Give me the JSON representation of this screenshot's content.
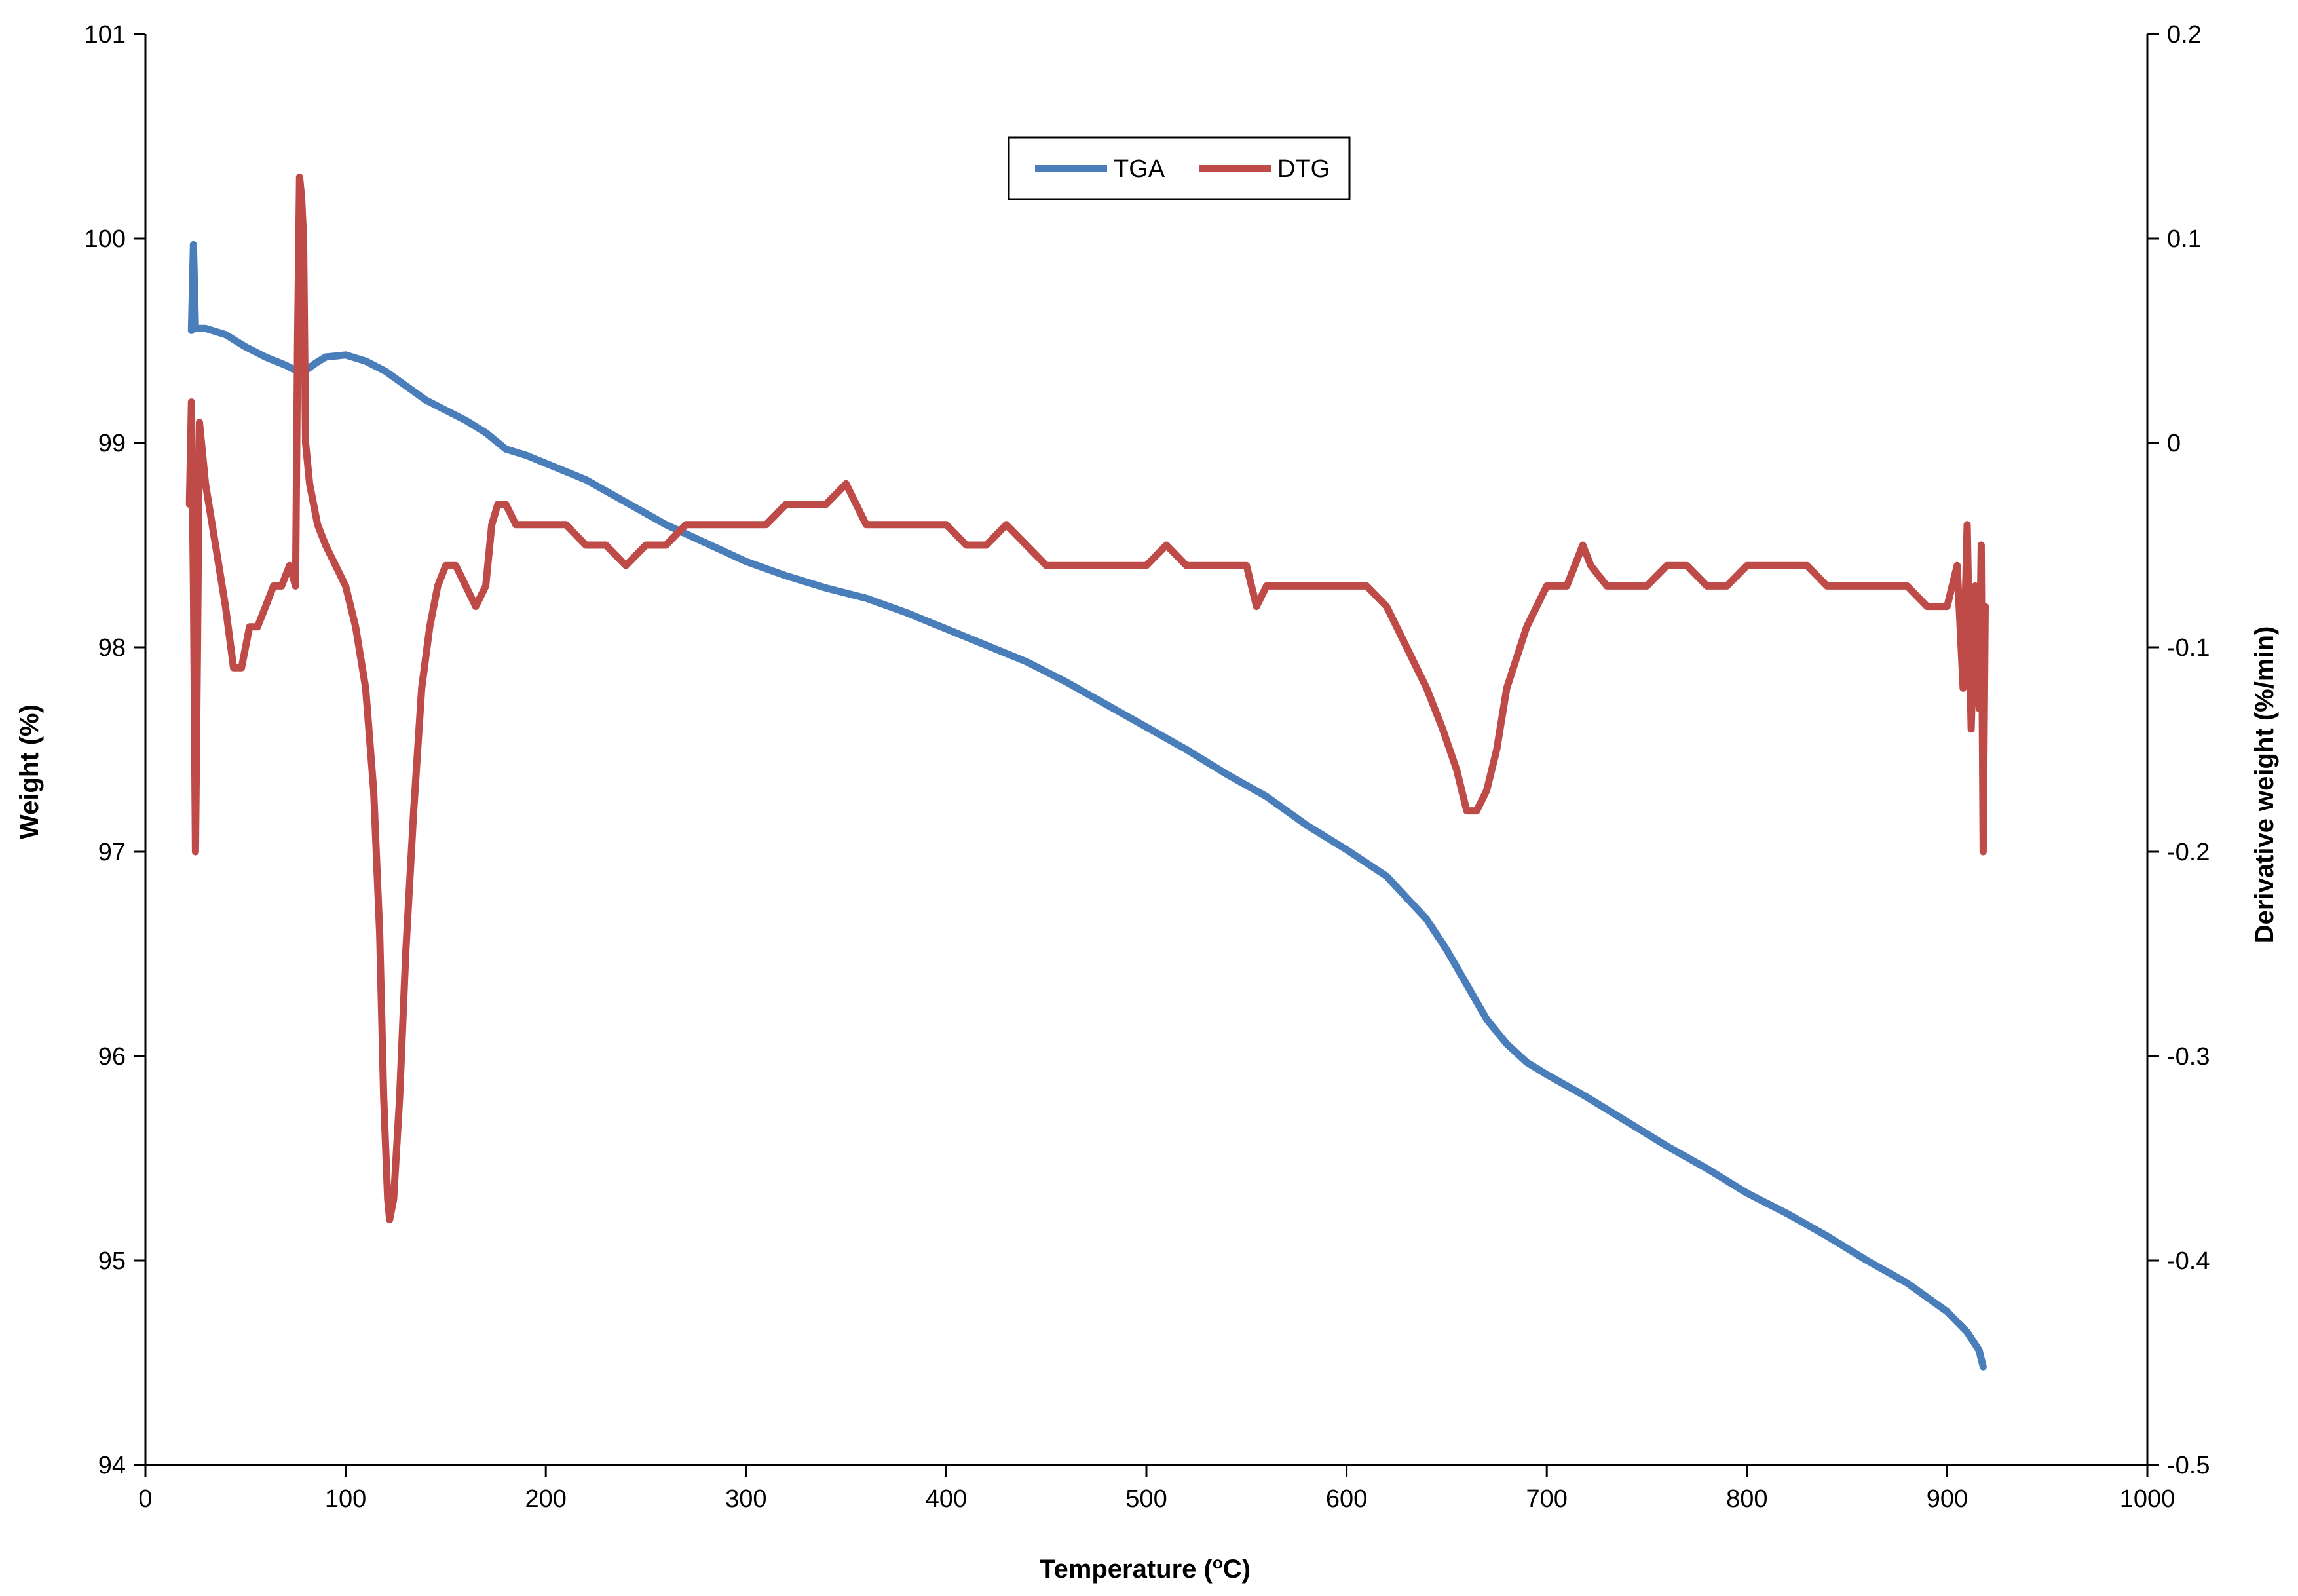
{
  "chart_data": {
    "type": "line",
    "title": "",
    "xlabel": "Temperature (",
    "xlabel_sup": "o",
    "xlabel_tail": "C)",
    "ylabel": "Weight (%)",
    "y2label": "Derivative weight (%/min)",
    "xlim": [
      0,
      1000
    ],
    "ylim": [
      94,
      101
    ],
    "y2lim": [
      -0.5,
      0.2
    ],
    "x_ticks": [
      "0",
      "100",
      "200",
      "300",
      "400",
      "500",
      "600",
      "700",
      "800",
      "900",
      "1000"
    ],
    "y_ticks": [
      "94",
      "95",
      "96",
      "97",
      "98",
      "99",
      "100",
      "101"
    ],
    "y2_ticks": [
      "-0.5",
      "-0.4",
      "-0.3",
      "-0.2",
      "-0.1",
      "0",
      "0.1",
      "0.2"
    ],
    "grid": false,
    "legend_position": "top-center",
    "series": [
      {
        "name": "TGA",
        "axis": "left",
        "color": "#4a7ebb",
        "points": [
          [
            23,
            99.55
          ],
          [
            24,
            99.97
          ],
          [
            25,
            99.56
          ],
          [
            30,
            99.56
          ],
          [
            40,
            99.53
          ],
          [
            50,
            99.47
          ],
          [
            60,
            99.42
          ],
          [
            70,
            99.38
          ],
          [
            78,
            99.34
          ],
          [
            85,
            99.39
          ],
          [
            90,
            99.42
          ],
          [
            100,
            99.43
          ],
          [
            110,
            99.4
          ],
          [
            120,
            99.35
          ],
          [
            130,
            99.28
          ],
          [
            140,
            99.21
          ],
          [
            150,
            99.16
          ],
          [
            160,
            99.11
          ],
          [
            170,
            99.05
          ],
          [
            180,
            98.97
          ],
          [
            190,
            98.94
          ],
          [
            200,
            98.9
          ],
          [
            220,
            98.82
          ],
          [
            240,
            98.71
          ],
          [
            260,
            98.6
          ],
          [
            280,
            98.51
          ],
          [
            300,
            98.42
          ],
          [
            320,
            98.35
          ],
          [
            340,
            98.29
          ],
          [
            360,
            98.24
          ],
          [
            380,
            98.17
          ],
          [
            400,
            98.09
          ],
          [
            420,
            98.01
          ],
          [
            440,
            97.93
          ],
          [
            460,
            97.83
          ],
          [
            480,
            97.72
          ],
          [
            500,
            97.61
          ],
          [
            520,
            97.5
          ],
          [
            540,
            97.38
          ],
          [
            560,
            97.27
          ],
          [
            580,
            97.13
          ],
          [
            600,
            97.01
          ],
          [
            620,
            96.88
          ],
          [
            640,
            96.67
          ],
          [
            650,
            96.52
          ],
          [
            660,
            96.35
          ],
          [
            670,
            96.18
          ],
          [
            680,
            96.06
          ],
          [
            690,
            95.97
          ],
          [
            700,
            95.91
          ],
          [
            720,
            95.8
          ],
          [
            740,
            95.68
          ],
          [
            760,
            95.56
          ],
          [
            780,
            95.45
          ],
          [
            800,
            95.33
          ],
          [
            820,
            95.23
          ],
          [
            840,
            95.12
          ],
          [
            860,
            95.0
          ],
          [
            880,
            94.89
          ],
          [
            900,
            94.75
          ],
          [
            910,
            94.65
          ],
          [
            916,
            94.56
          ],
          [
            918,
            94.48
          ]
        ]
      },
      {
        "name": "DTG",
        "axis": "right",
        "color": "#be4b48",
        "points": [
          [
            22,
            -0.03
          ],
          [
            23,
            0.02
          ],
          [
            24,
            -0.07
          ],
          [
            25,
            -0.2
          ],
          [
            26,
            -0.1
          ],
          [
            27,
            0.01
          ],
          [
            30,
            -0.02
          ],
          [
            35,
            -0.05
          ],
          [
            40,
            -0.08
          ],
          [
            44,
            -0.11
          ],
          [
            48,
            -0.11
          ],
          [
            52,
            -0.09
          ],
          [
            56,
            -0.09
          ],
          [
            60,
            -0.08
          ],
          [
            64,
            -0.07
          ],
          [
            68,
            -0.07
          ],
          [
            72,
            -0.06
          ],
          [
            75,
            -0.07
          ],
          [
            76,
            0.05
          ],
          [
            77,
            0.13
          ],
          [
            78,
            0.12
          ],
          [
            79,
            0.1
          ],
          [
            80,
            0.0
          ],
          [
            82,
            -0.02
          ],
          [
            86,
            -0.04
          ],
          [
            90,
            -0.05
          ],
          [
            95,
            -0.06
          ],
          [
            100,
            -0.07
          ],
          [
            105,
            -0.09
          ],
          [
            110,
            -0.12
          ],
          [
            114,
            -0.17
          ],
          [
            117,
            -0.24
          ],
          [
            119,
            -0.32
          ],
          [
            121,
            -0.37
          ],
          [
            122,
            -0.38
          ],
          [
            124,
            -0.37
          ],
          [
            127,
            -0.32
          ],
          [
            130,
            -0.25
          ],
          [
            134,
            -0.18
          ],
          [
            138,
            -0.12
          ],
          [
            142,
            -0.09
          ],
          [
            146,
            -0.07
          ],
          [
            150,
            -0.06
          ],
          [
            155,
            -0.06
          ],
          [
            160,
            -0.07
          ],
          [
            165,
            -0.08
          ],
          [
            170,
            -0.07
          ],
          [
            173,
            -0.04
          ],
          [
            176,
            -0.03
          ],
          [
            180,
            -0.03
          ],
          [
            185,
            -0.04
          ],
          [
            190,
            -0.04
          ],
          [
            200,
            -0.04
          ],
          [
            210,
            -0.04
          ],
          [
            220,
            -0.05
          ],
          [
            230,
            -0.05
          ],
          [
            240,
            -0.06
          ],
          [
            250,
            -0.05
          ],
          [
            260,
            -0.05
          ],
          [
            270,
            -0.04
          ],
          [
            280,
            -0.04
          ],
          [
            290,
            -0.04
          ],
          [
            300,
            -0.04
          ],
          [
            310,
            -0.04
          ],
          [
            320,
            -0.03
          ],
          [
            330,
            -0.03
          ],
          [
            340,
            -0.03
          ],
          [
            350,
            -0.02
          ],
          [
            355,
            -0.03
          ],
          [
            360,
            -0.04
          ],
          [
            370,
            -0.04
          ],
          [
            380,
            -0.04
          ],
          [
            390,
            -0.04
          ],
          [
            400,
            -0.04
          ],
          [
            410,
            -0.05
          ],
          [
            420,
            -0.05
          ],
          [
            430,
            -0.04
          ],
          [
            440,
            -0.05
          ],
          [
            450,
            -0.06
          ],
          [
            460,
            -0.06
          ],
          [
            470,
            -0.06
          ],
          [
            480,
            -0.06
          ],
          [
            490,
            -0.06
          ],
          [
            500,
            -0.06
          ],
          [
            510,
            -0.05
          ],
          [
            520,
            -0.06
          ],
          [
            530,
            -0.06
          ],
          [
            540,
            -0.06
          ],
          [
            550,
            -0.06
          ],
          [
            555,
            -0.08
          ],
          [
            560,
            -0.07
          ],
          [
            570,
            -0.07
          ],
          [
            580,
            -0.07
          ],
          [
            590,
            -0.07
          ],
          [
            600,
            -0.07
          ],
          [
            610,
            -0.07
          ],
          [
            620,
            -0.08
          ],
          [
            630,
            -0.1
          ],
          [
            640,
            -0.12
          ],
          [
            648,
            -0.14
          ],
          [
            655,
            -0.16
          ],
          [
            660,
            -0.18
          ],
          [
            665,
            -0.18
          ],
          [
            670,
            -0.17
          ],
          [
            675,
            -0.15
          ],
          [
            680,
            -0.12
          ],
          [
            690,
            -0.09
          ],
          [
            700,
            -0.07
          ],
          [
            710,
            -0.07
          ],
          [
            718,
            -0.05
          ],
          [
            722,
            -0.06
          ],
          [
            730,
            -0.07
          ],
          [
            740,
            -0.07
          ],
          [
            750,
            -0.07
          ],
          [
            760,
            -0.06
          ],
          [
            770,
            -0.06
          ],
          [
            780,
            -0.07
          ],
          [
            790,
            -0.07
          ],
          [
            800,
            -0.06
          ],
          [
            810,
            -0.06
          ],
          [
            820,
            -0.06
          ],
          [
            830,
            -0.06
          ],
          [
            840,
            -0.07
          ],
          [
            850,
            -0.07
          ],
          [
            860,
            -0.07
          ],
          [
            870,
            -0.07
          ],
          [
            880,
            -0.07
          ],
          [
            890,
            -0.08
          ],
          [
            900,
            -0.08
          ],
          [
            905,
            -0.06
          ],
          [
            908,
            -0.12
          ],
          [
            910,
            -0.04
          ],
          [
            912,
            -0.14
          ],
          [
            914,
            -0.07
          ],
          [
            916,
            -0.13
          ],
          [
            917,
            -0.05
          ],
          [
            918,
            -0.2
          ],
          [
            919,
            -0.08
          ]
        ]
      }
    ]
  }
}
